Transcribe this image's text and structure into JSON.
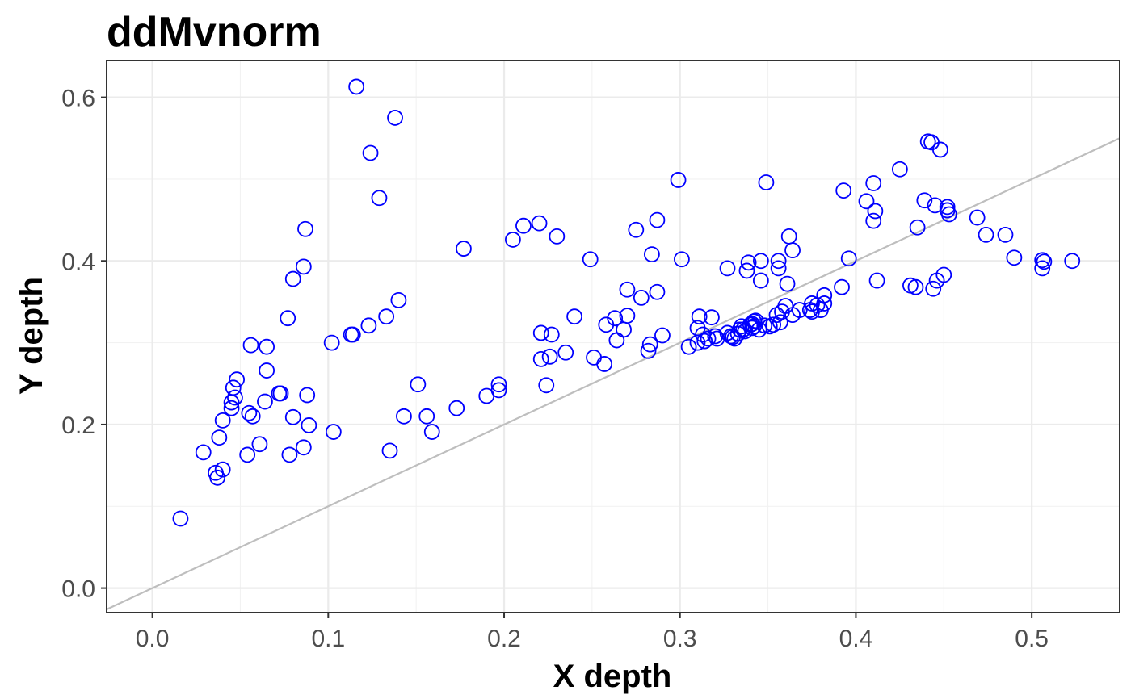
{
  "chart_data": {
    "type": "scatter",
    "title": "ddMvnorm",
    "xlabel": "X depth",
    "ylabel": "Y depth",
    "xlim": [
      -0.026,
      0.55
    ],
    "ylim": [
      -0.03,
      0.645
    ],
    "xticks": [
      0.0,
      0.1,
      0.2,
      0.3,
      0.4,
      0.5
    ],
    "xtick_labels": [
      "0.0",
      "0.1",
      "0.2",
      "0.3",
      "0.4",
      "0.5"
    ],
    "yticks": [
      0.0,
      0.2,
      0.4,
      0.6
    ],
    "ytick_labels": [
      "0.0",
      "0.2",
      "0.4",
      "0.6"
    ],
    "grid": true,
    "reference_line": {
      "slope": 1,
      "intercept": 0,
      "color": "#bebebe"
    },
    "point_color": "#0000ff",
    "marker": "open-circle",
    "points": [
      [
        0.016,
        0.085
      ],
      [
        0.029,
        0.166
      ],
      [
        0.036,
        0.141
      ],
      [
        0.037,
        0.135
      ],
      [
        0.038,
        0.184
      ],
      [
        0.04,
        0.145
      ],
      [
        0.04,
        0.205
      ],
      [
        0.045,
        0.227
      ],
      [
        0.045,
        0.22
      ],
      [
        0.046,
        0.245
      ],
      [
        0.047,
        0.233
      ],
      [
        0.048,
        0.255
      ],
      [
        0.054,
        0.163
      ],
      [
        0.055,
        0.214
      ],
      [
        0.056,
        0.297
      ],
      [
        0.057,
        0.21
      ],
      [
        0.061,
        0.176
      ],
      [
        0.064,
        0.228
      ],
      [
        0.065,
        0.295
      ],
      [
        0.065,
        0.266
      ],
      [
        0.072,
        0.238
      ],
      [
        0.073,
        0.238
      ],
      [
        0.077,
        0.33
      ],
      [
        0.078,
        0.163
      ],
      [
        0.08,
        0.209
      ],
      [
        0.08,
        0.378
      ],
      [
        0.086,
        0.393
      ],
      [
        0.086,
        0.172
      ],
      [
        0.087,
        0.439
      ],
      [
        0.088,
        0.236
      ],
      [
        0.089,
        0.199
      ],
      [
        0.102,
        0.3
      ],
      [
        0.103,
        0.191
      ],
      [
        0.113,
        0.31
      ],
      [
        0.114,
        0.31
      ],
      [
        0.116,
        0.613
      ],
      [
        0.123,
        0.321
      ],
      [
        0.124,
        0.532
      ],
      [
        0.129,
        0.477
      ],
      [
        0.133,
        0.332
      ],
      [
        0.135,
        0.168
      ],
      [
        0.138,
        0.575
      ],
      [
        0.14,
        0.352
      ],
      [
        0.143,
        0.21
      ],
      [
        0.151,
        0.249
      ],
      [
        0.156,
        0.21
      ],
      [
        0.159,
        0.191
      ],
      [
        0.173,
        0.22
      ],
      [
        0.177,
        0.415
      ],
      [
        0.19,
        0.235
      ],
      [
        0.197,
        0.249
      ],
      [
        0.197,
        0.242
      ],
      [
        0.205,
        0.426
      ],
      [
        0.211,
        0.443
      ],
      [
        0.22,
        0.446
      ],
      [
        0.221,
        0.312
      ],
      [
        0.221,
        0.28
      ],
      [
        0.224,
        0.248
      ],
      [
        0.226,
        0.283
      ],
      [
        0.227,
        0.31
      ],
      [
        0.23,
        0.43
      ],
      [
        0.235,
        0.288
      ],
      [
        0.24,
        0.332
      ],
      [
        0.249,
        0.402
      ],
      [
        0.251,
        0.282
      ],
      [
        0.257,
        0.274
      ],
      [
        0.258,
        0.322
      ],
      [
        0.263,
        0.33
      ],
      [
        0.264,
        0.303
      ],
      [
        0.268,
        0.316
      ],
      [
        0.27,
        0.333
      ],
      [
        0.27,
        0.365
      ],
      [
        0.275,
        0.438
      ],
      [
        0.278,
        0.355
      ],
      [
        0.282,
        0.29
      ],
      [
        0.283,
        0.298
      ],
      [
        0.284,
        0.408
      ],
      [
        0.287,
        0.362
      ],
      [
        0.287,
        0.45
      ],
      [
        0.29,
        0.309
      ],
      [
        0.299,
        0.499
      ],
      [
        0.301,
        0.402
      ],
      [
        0.305,
        0.295
      ],
      [
        0.31,
        0.3
      ],
      [
        0.31,
        0.318
      ],
      [
        0.311,
        0.332
      ],
      [
        0.313,
        0.31
      ],
      [
        0.314,
        0.302
      ],
      [
        0.316,
        0.305
      ],
      [
        0.318,
        0.331
      ],
      [
        0.32,
        0.308
      ],
      [
        0.321,
        0.305
      ],
      [
        0.327,
        0.391
      ],
      [
        0.327,
        0.312
      ],
      [
        0.329,
        0.308
      ],
      [
        0.33,
        0.307
      ],
      [
        0.331,
        0.305
      ],
      [
        0.333,
        0.311
      ],
      [
        0.334,
        0.316
      ],
      [
        0.335,
        0.32
      ],
      [
        0.336,
        0.316
      ],
      [
        0.337,
        0.314
      ],
      [
        0.338,
        0.388
      ],
      [
        0.339,
        0.398
      ],
      [
        0.34,
        0.322
      ],
      [
        0.341,
        0.318
      ],
      [
        0.341,
        0.323
      ],
      [
        0.342,
        0.32
      ],
      [
        0.342,
        0.326
      ],
      [
        0.343,
        0.327
      ],
      [
        0.345,
        0.316
      ],
      [
        0.346,
        0.4
      ],
      [
        0.346,
        0.376
      ],
      [
        0.348,
        0.321
      ],
      [
        0.349,
        0.496
      ],
      [
        0.351,
        0.32
      ],
      [
        0.353,
        0.322
      ],
      [
        0.355,
        0.334
      ],
      [
        0.356,
        0.4
      ],
      [
        0.356,
        0.391
      ],
      [
        0.357,
        0.325
      ],
      [
        0.358,
        0.338
      ],
      [
        0.36,
        0.345
      ],
      [
        0.361,
        0.372
      ],
      [
        0.362,
        0.43
      ],
      [
        0.364,
        0.334
      ],
      [
        0.364,
        0.413
      ],
      [
        0.368,
        0.34
      ],
      [
        0.374,
        0.34
      ],
      [
        0.375,
        0.338
      ],
      [
        0.375,
        0.348
      ],
      [
        0.378,
        0.346
      ],
      [
        0.38,
        0.34
      ],
      [
        0.382,
        0.348
      ],
      [
        0.382,
        0.358
      ],
      [
        0.392,
        0.368
      ],
      [
        0.393,
        0.486
      ],
      [
        0.396,
        0.403
      ],
      [
        0.406,
        0.473
      ],
      [
        0.41,
        0.495
      ],
      [
        0.41,
        0.449
      ],
      [
        0.411,
        0.461
      ],
      [
        0.412,
        0.376
      ],
      [
        0.425,
        0.512
      ],
      [
        0.431,
        0.37
      ],
      [
        0.434,
        0.368
      ],
      [
        0.435,
        0.441
      ],
      [
        0.439,
        0.474
      ],
      [
        0.441,
        0.546
      ],
      [
        0.443,
        0.545
      ],
      [
        0.444,
        0.366
      ],
      [
        0.445,
        0.468
      ],
      [
        0.446,
        0.376
      ],
      [
        0.448,
        0.536
      ],
      [
        0.45,
        0.383
      ],
      [
        0.452,
        0.466
      ],
      [
        0.452,
        0.462
      ],
      [
        0.453,
        0.457
      ],
      [
        0.469,
        0.453
      ],
      [
        0.474,
        0.432
      ],
      [
        0.485,
        0.432
      ],
      [
        0.49,
        0.404
      ],
      [
        0.506,
        0.401
      ],
      [
        0.506,
        0.391
      ],
      [
        0.507,
        0.399
      ],
      [
        0.523,
        0.4
      ]
    ]
  }
}
